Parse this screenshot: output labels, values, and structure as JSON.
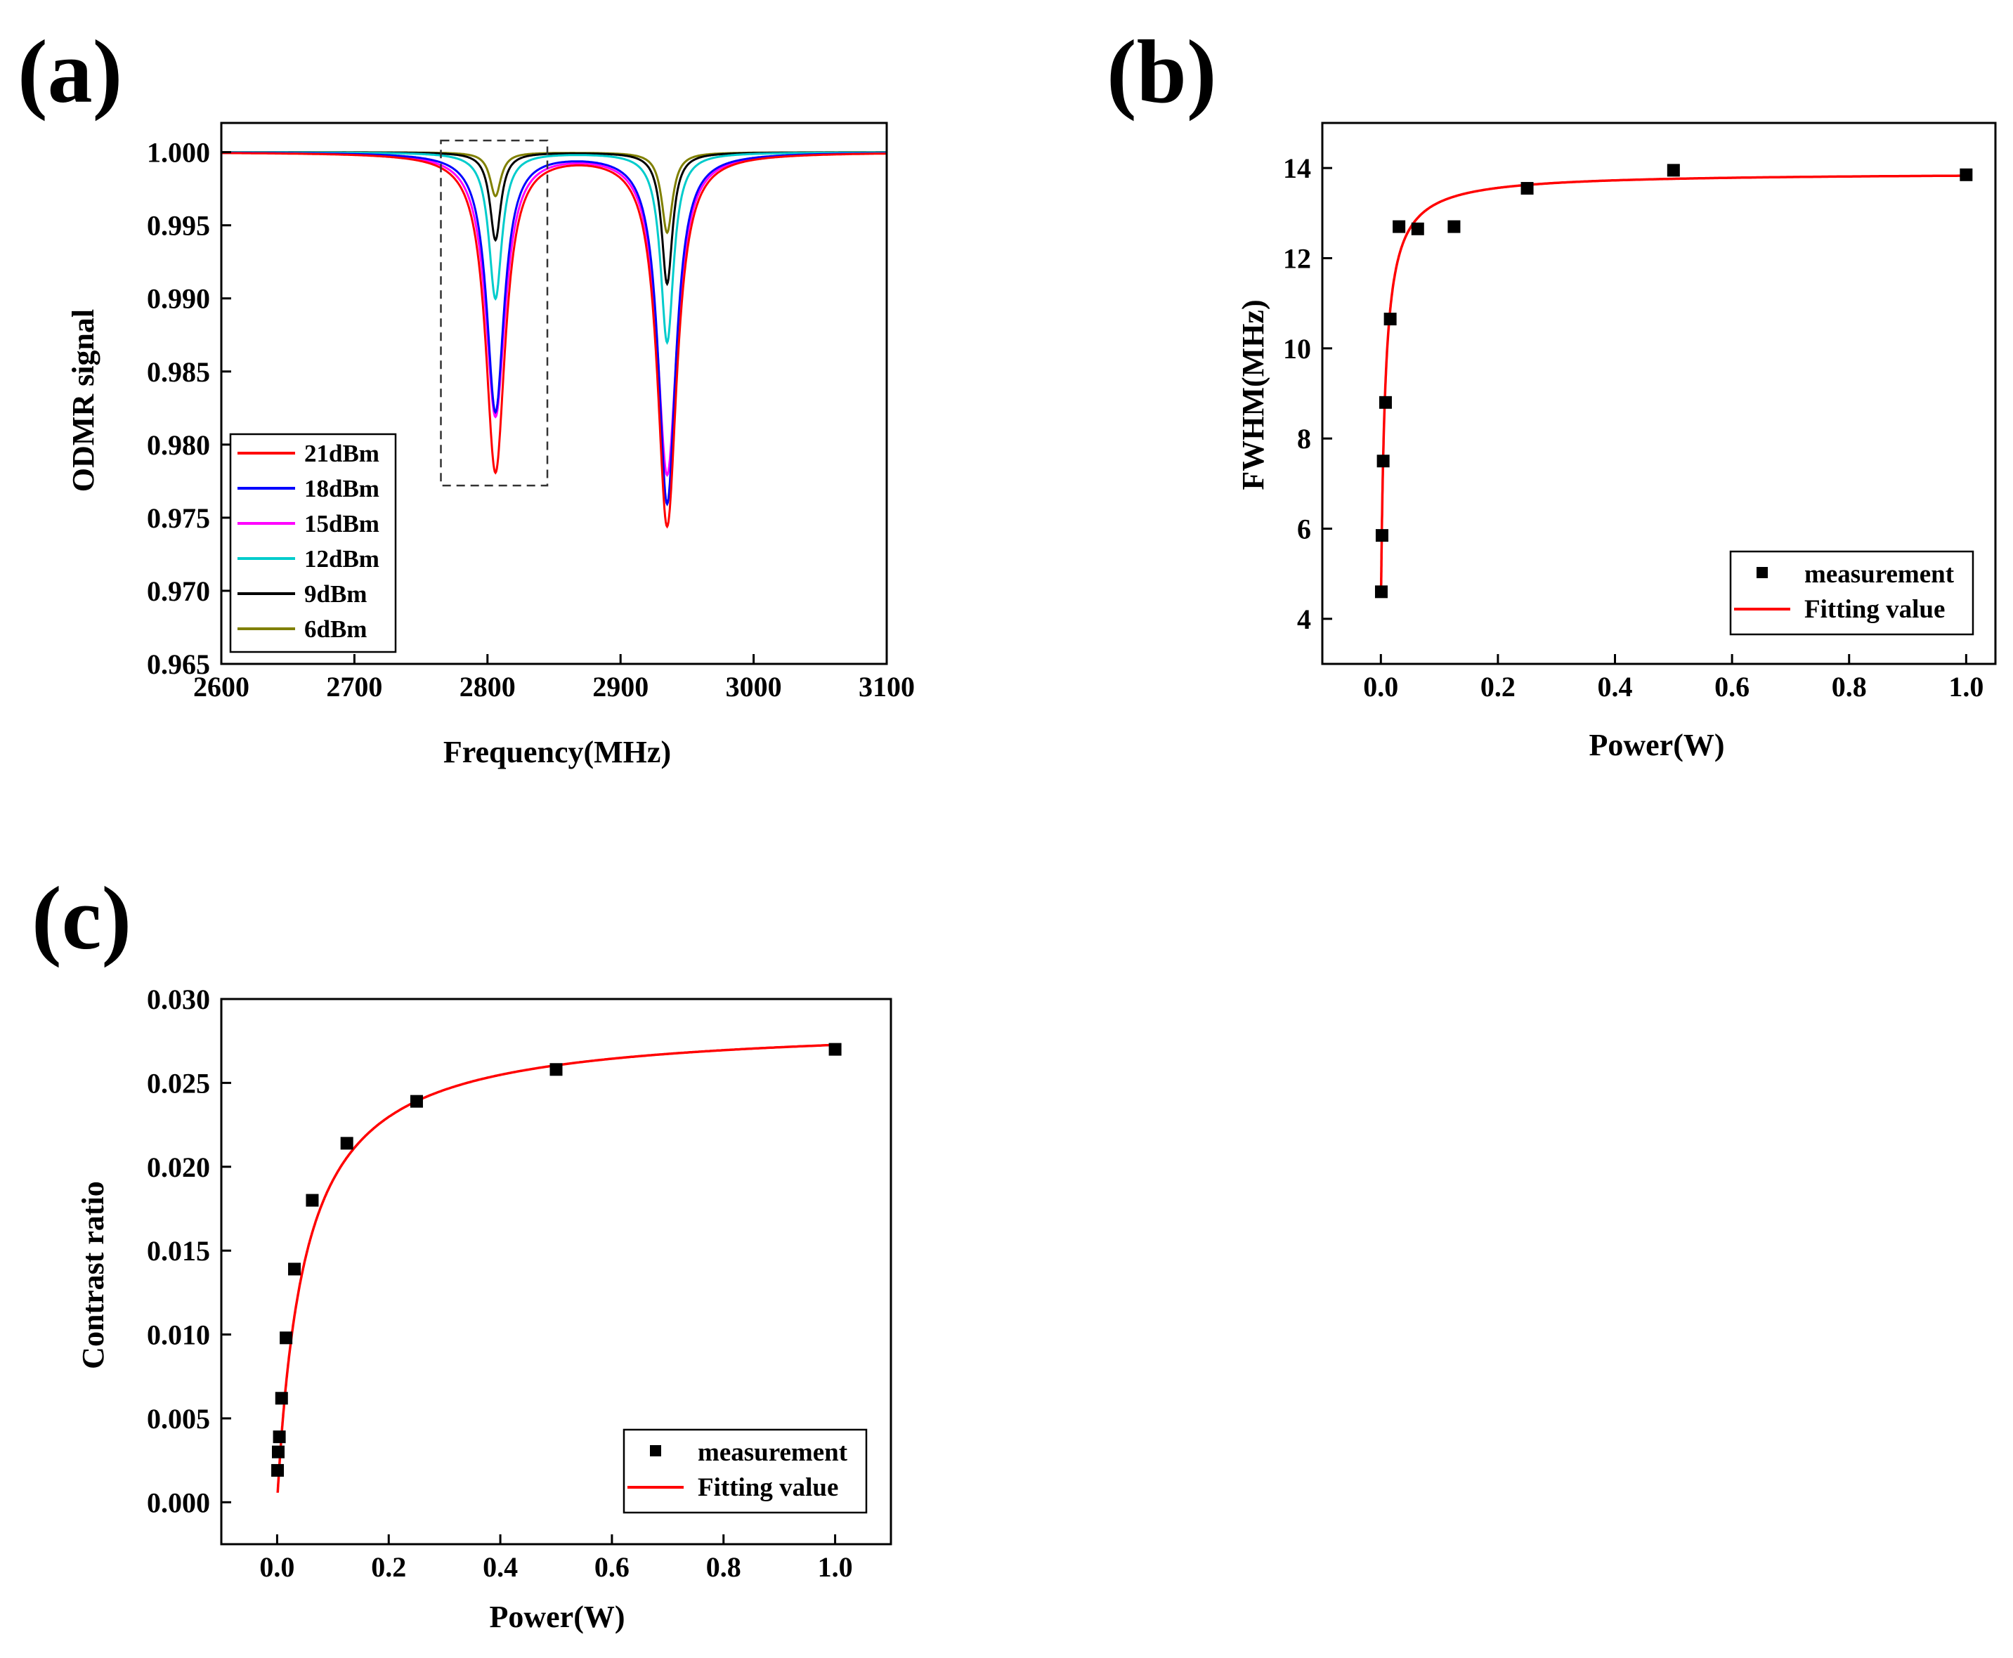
{
  "chart_data": [
    {
      "panel_label": "(a)",
      "type": "line",
      "title": "",
      "xlabel": "Frequency(MHz)",
      "ylabel": "ODMR signal",
      "xlim": [
        2600,
        3100
      ],
      "ylim": [
        0.965,
        1.002
      ],
      "x_ticks": [
        2600,
        2700,
        2800,
        2900,
        3000,
        3100
      ],
      "x_tick_labels": [
        "2600",
        "2700",
        "2800",
        "2900",
        "3000",
        "3100"
      ],
      "y_ticks": [
        0.965,
        0.97,
        0.975,
        0.98,
        0.985,
        0.99,
        0.995,
        1.0
      ],
      "y_tick_labels": [
        "0.965",
        "0.970",
        "0.975",
        "0.980",
        "0.985",
        "0.990",
        "0.995",
        "1.000"
      ],
      "grid": false,
      "legend_position": "bottom-left",
      "annotation": "dashed box around 2765–2845 MHz dip",
      "highlight_box": {
        "x": [
          2765,
          2845
        ],
        "y": [
          0.9772,
          1.0008
        ]
      },
      "series": [
        {
          "name": "21dBm",
          "color": "#ff0000",
          "dip1_center": 2806,
          "dip1_depth": 0.0218,
          "dip2_center": 2935,
          "dip2_depth": 0.0255,
          "half_width": 9
        },
        {
          "name": "18dBm",
          "color": "#0000ff",
          "dip1_center": 2806,
          "dip1_depth": 0.0177,
          "dip2_center": 2935,
          "dip2_depth": 0.024,
          "half_width": 8
        },
        {
          "name": "15dBm",
          "color": "#ff00ff",
          "dip1_center": 2806,
          "dip1_depth": 0.018,
          "dip2_center": 2935,
          "dip2_depth": 0.022,
          "half_width": 9
        },
        {
          "name": "12dBm",
          "color": "#00cccc",
          "dip1_center": 2806,
          "dip1_depth": 0.01,
          "dip2_center": 2935,
          "dip2_depth": 0.013,
          "half_width": 6
        },
        {
          "name": "9dBm",
          "color": "#000000",
          "dip1_center": 2806,
          "dip1_depth": 0.006,
          "dip2_center": 2935,
          "dip2_depth": 0.009,
          "half_width": 5
        },
        {
          "name": "6dBm",
          "color": "#808000",
          "dip1_center": 2806,
          "dip1_depth": 0.003,
          "dip2_center": 2935,
          "dip2_depth": 0.0055,
          "half_width": 5
        }
      ]
    },
    {
      "panel_label": "(b)",
      "type": "scatter",
      "title": "",
      "xlabel": "Power(W)",
      "ylabel": "FWHM(MHz)",
      "xlim": [
        -0.1,
        1.05
      ],
      "ylim": [
        3,
        15
      ],
      "x_ticks": [
        0.0,
        0.2,
        0.4,
        0.6,
        0.8,
        1.0
      ],
      "x_tick_labels": [
        "0.0",
        "0.2",
        "0.4",
        "0.6",
        "0.8",
        "1.0"
      ],
      "y_ticks": [
        4,
        6,
        8,
        10,
        12,
        14
      ],
      "y_tick_labels": [
        "4",
        "6",
        "8",
        "10",
        "12",
        "14"
      ],
      "grid": false,
      "legend_position": "bottom-right",
      "series": [
        {
          "name": "measurement",
          "kind": "scatter",
          "color": "#000000",
          "x": [
            0.0008,
            0.002,
            0.004,
            0.008,
            0.016,
            0.031,
            0.063,
            0.125,
            0.25,
            0.5,
            1.0
          ],
          "y": [
            4.6,
            5.85,
            7.5,
            8.8,
            10.65,
            12.7,
            12.65,
            12.7,
            13.55,
            13.95,
            13.85
          ]
        },
        {
          "name": "Fitting value",
          "kind": "line",
          "color": "#ff0000",
          "model": "y = y0 + a*x/(x+b)",
          "params": {
            "y0": 4.1,
            "a": 9.8,
            "b": 0.0072
          },
          "x_range": [
            0.0005,
            1.0
          ]
        }
      ]
    },
    {
      "panel_label": "(c)",
      "type": "scatter",
      "title": "",
      "xlabel": "Power(W)",
      "ylabel": "Contrast ratio",
      "xlim": [
        -0.1,
        1.1
      ],
      "ylim": [
        -0.0025,
        0.03
      ],
      "x_ticks": [
        0.0,
        0.2,
        0.4,
        0.6,
        0.8,
        1.0
      ],
      "x_tick_labels": [
        "0.0",
        "0.2",
        "0.4",
        "0.6",
        "0.8",
        "1.0"
      ],
      "y_ticks": [
        0.0,
        0.005,
        0.01,
        0.015,
        0.02,
        0.025,
        0.03
      ],
      "y_tick_labels": [
        "0.000",
        "0.005",
        "0.010",
        "0.015",
        "0.020",
        "0.025",
        "0.030"
      ],
      "grid": false,
      "legend_position": "bottom-right",
      "series": [
        {
          "name": "measurement",
          "kind": "scatter",
          "color": "#000000",
          "x": [
            0.0008,
            0.002,
            0.004,
            0.008,
            0.016,
            0.031,
            0.063,
            0.125,
            0.25,
            0.5,
            1.0
          ],
          "y": [
            0.0019,
            0.003,
            0.0039,
            0.0062,
            0.0098,
            0.0139,
            0.018,
            0.0214,
            0.0239,
            0.0258,
            0.027
          ]
        },
        {
          "name": "Fitting value",
          "kind": "line",
          "color": "#ff0000",
          "model": "y = a*x/(x+b)",
          "params": {
            "a": 0.0286,
            "b": 0.049
          },
          "x_range": [
            0.001,
            1.0
          ]
        }
      ]
    }
  ]
}
